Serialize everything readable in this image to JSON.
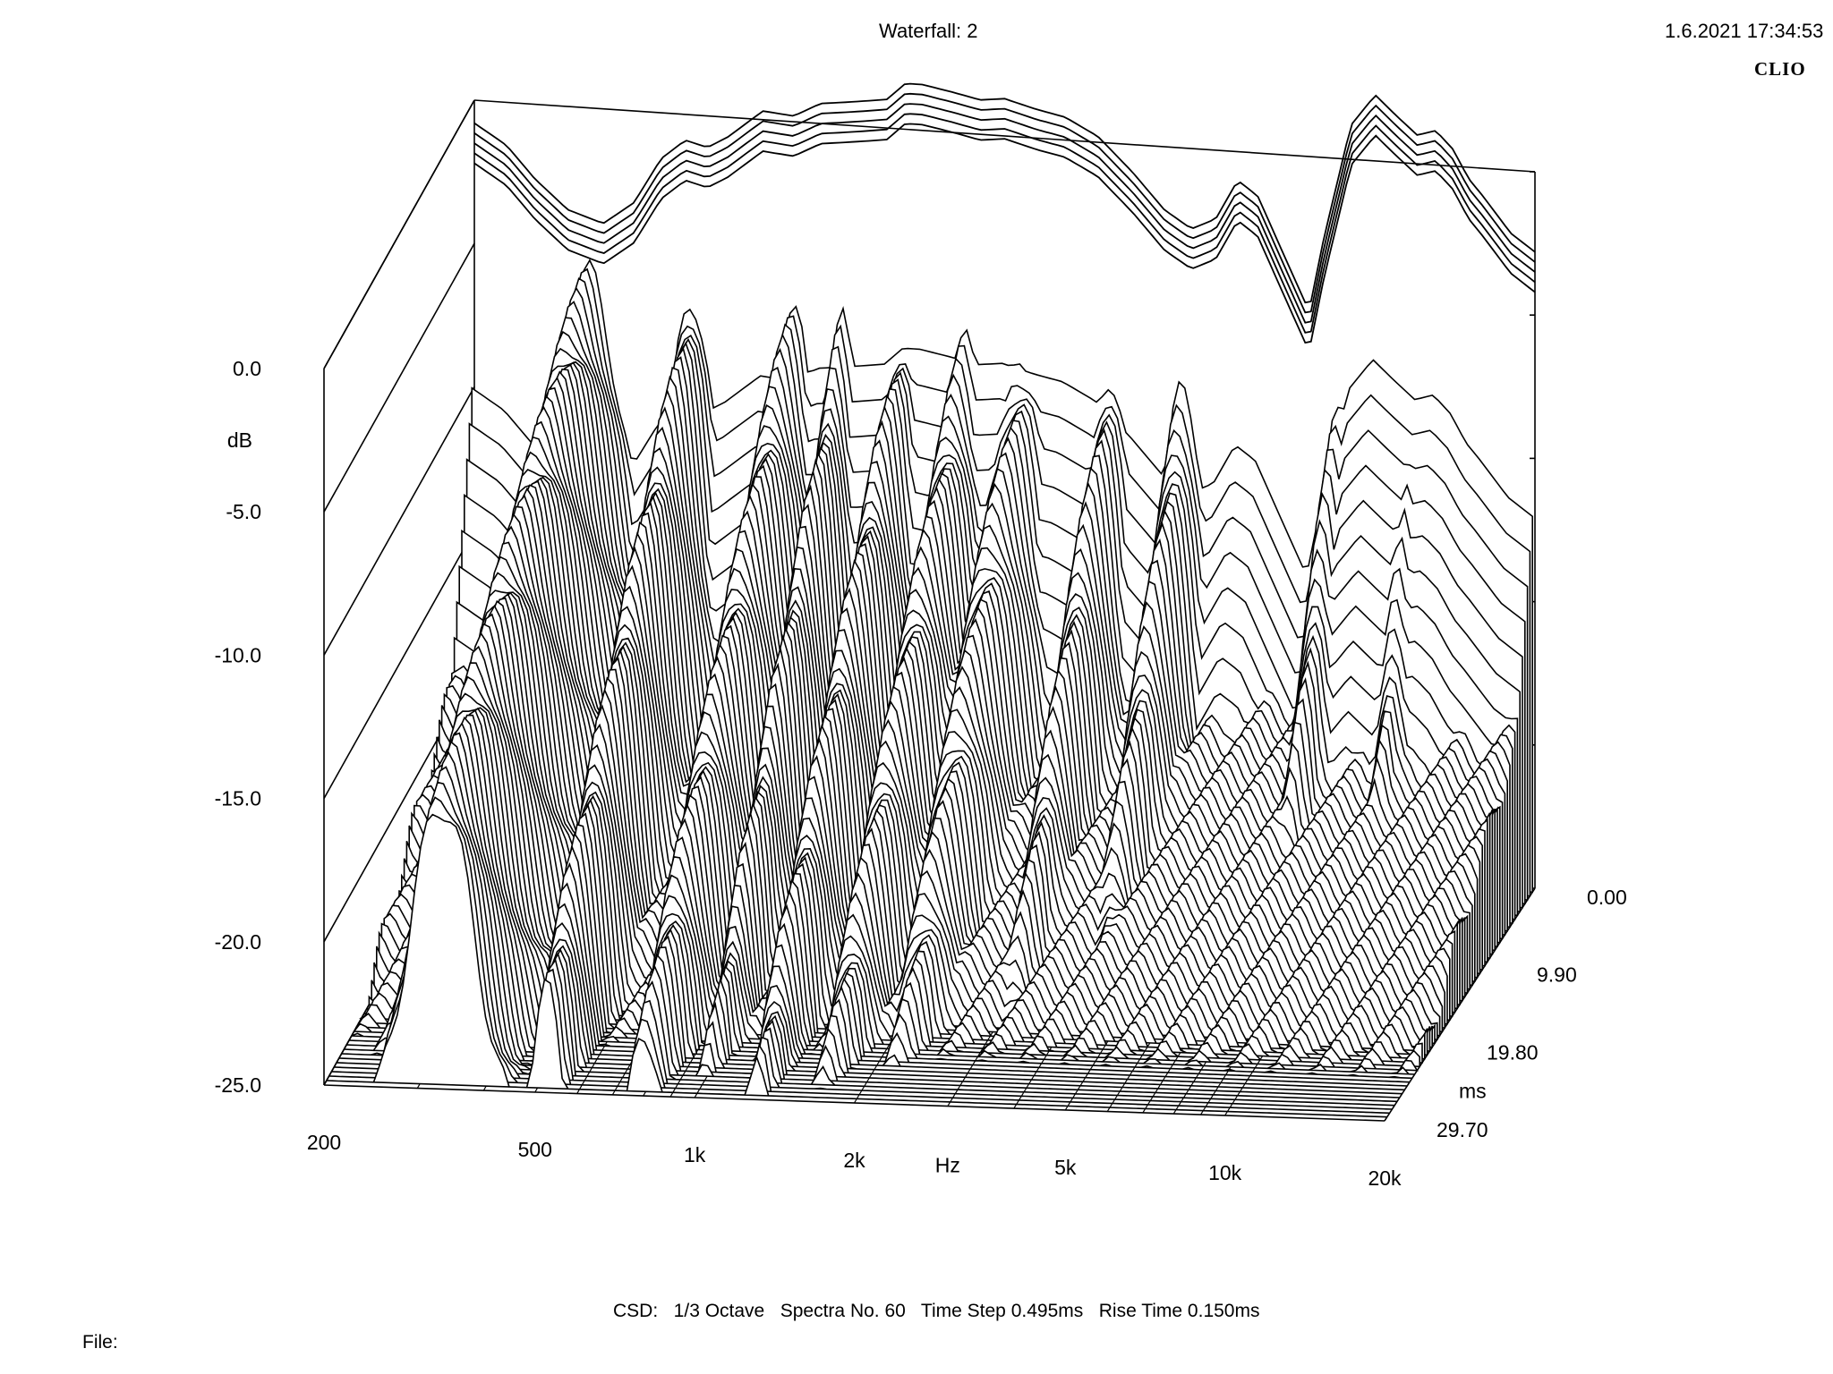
{
  "header": {
    "title": "Waterfall: 2",
    "datetime": "1.6.2021 17:34:53",
    "brand": "CLIO"
  },
  "footer": {
    "info": "CSD:   1/3 Octave   Spectra No. 60   Time Step 0.495ms   Rise Time 0.150ms",
    "file_label": "File:"
  },
  "chart_data": {
    "type": "waterfall",
    "title": "Waterfall: 2",
    "method": "CSD",
    "smoothing": "1/3 Octave",
    "spectra_count": 60,
    "time_step_ms": 0.495,
    "rise_time_ms": 0.15,
    "xlabel": "Hz",
    "ylabel": "dB",
    "zlabel": "ms",
    "x_scale": "log",
    "xlim": [
      200,
      20000
    ],
    "ylim": [
      -25,
      0
    ],
    "zlim": [
      0,
      29.7
    ],
    "x_ticks": [
      {
        "value": 200,
        "label": "200"
      },
      {
        "value": 500,
        "label": "500"
      },
      {
        "value": 1000,
        "label": "1k"
      },
      {
        "value": 2000,
        "label": "2k"
      },
      {
        "value": 5000,
        "label": "5k"
      },
      {
        "value": 10000,
        "label": "10k"
      },
      {
        "value": 20000,
        "label": "20k"
      }
    ],
    "y_ticks": [
      {
        "value": 0,
        "label": "0.0"
      },
      {
        "value": -5,
        "label": "-5.0"
      },
      {
        "value": -10,
        "label": "-10.0"
      },
      {
        "value": -15,
        "label": "-15.0"
      },
      {
        "value": -20,
        "label": "-20.0"
      },
      {
        "value": -25,
        "label": "-25.0"
      }
    ],
    "z_ticks": [
      {
        "value": 0,
        "label": "0.00"
      },
      {
        "value": 9.9,
        "label": "9.90"
      },
      {
        "value": 19.8,
        "label": "19.80"
      },
      {
        "value": 29.7,
        "label": "29.70"
      }
    ],
    "rear_response": {
      "time_ms": 0,
      "freq_hz": [
        200,
        230,
        260,
        300,
        350,
        400,
        450,
        500,
        550,
        600,
        700,
        800,
        900,
        1000,
        1100,
        1200,
        1300,
        1400,
        1600,
        1800,
        2000,
        2300,
        2600,
        3000,
        3500,
        4000,
        4500,
        5000,
        5500,
        6000,
        7000,
        7500,
        8000,
        9000,
        10000,
        11000,
        12000,
        13000,
        14000,
        15000,
        16000,
        18000,
        20000
      ],
      "level_db": [
        -0.8,
        -1.5,
        -2.6,
        -3.6,
        -4.0,
        -3.2,
        -1.6,
        -0.9,
        -1.1,
        -0.7,
        0.3,
        0.2,
        0.7,
        0.8,
        0.9,
        1.0,
        1.6,
        1.6,
        1.4,
        1.2,
        1.3,
        1.0,
        0.8,
        0.2,
        -1.0,
        -2.2,
        -2.8,
        -2.4,
        -1.0,
        -1.5,
        -4.2,
        -5.4,
        -2.8,
        1.2,
        2.3,
        1.6,
        1.0,
        1.2,
        0.6,
        -0.4,
        -1.0,
        -2.2,
        -2.8
      ]
    }
  }
}
